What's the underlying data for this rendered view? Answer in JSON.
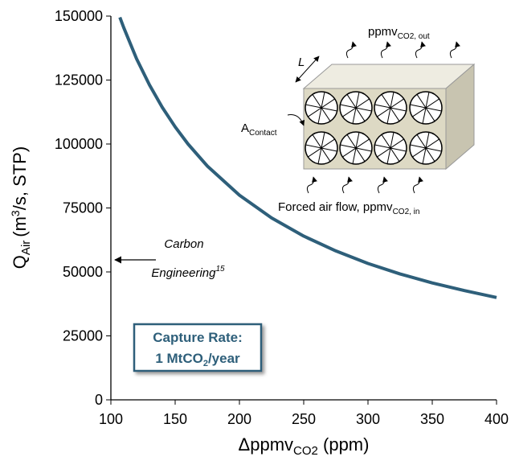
{
  "chart_data": {
    "type": "line",
    "x": [
      107,
      110,
      120,
      130,
      140,
      150,
      160,
      175,
      200,
      225,
      250,
      275,
      300,
      325,
      350,
      375,
      400
    ],
    "values": [
      149500,
      145500,
      133300,
      123100,
      114300,
      106700,
      100000,
      91400,
      80000,
      71100,
      64000,
      58200,
      53300,
      49200,
      45700,
      42700,
      40000
    ],
    "color": "#2e5f7a",
    "xlim": [
      100,
      400
    ],
    "xticks": [
      100,
      150,
      200,
      250,
      300,
      350,
      400
    ],
    "ylim": [
      0,
      150000
    ],
    "yticks": [
      0,
      25000,
      50000,
      75000,
      100000,
      125000,
      150000
    ],
    "xlabel": {
      "text": "Δppmv",
      "subscript": "CO2",
      "rest": " (ppm)"
    },
    "ylabel": {
      "text": "Q",
      "subscript": "Air",
      "text2": "(m",
      "superscript": "3",
      "text3": "/s, STP)"
    },
    "annotation": {
      "line1": "Carbon",
      "line2": "Engineering",
      "superscript": "15"
    },
    "capture_box": {
      "line1": "Capture Rate:",
      "line2": "1 MtCO",
      "subscript": "2",
      "rest": "/year"
    },
    "inset": {
      "out_label": "ppmv",
      "out_subscript": "CO2, out",
      "length_label": "L",
      "area_label": "A",
      "area_subscript": "Contact",
      "in_label": "Forced air flow, ppmv",
      "in_subscript": "CO2, in"
    }
  }
}
